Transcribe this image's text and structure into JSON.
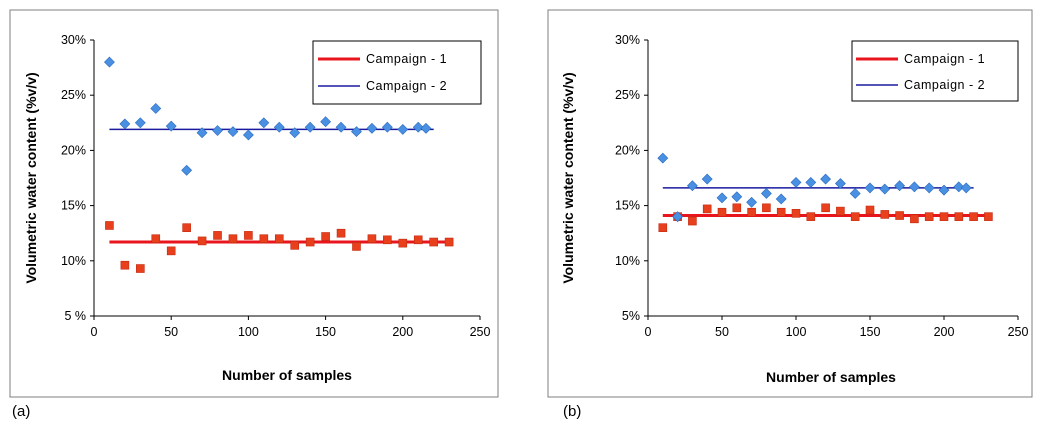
{
  "chart_data": [
    {
      "type": "scatter",
      "panel_label": "(a)",
      "xlabel": "Number of samples",
      "ylabel": "Volumetric water content (%v/v)",
      "xlim": [
        0,
        250
      ],
      "ylim": [
        5,
        30
      ],
      "xticks": [
        0,
        50,
        100,
        150,
        200,
        250
      ],
      "yticks": [
        5,
        10,
        15,
        20,
        25,
        30
      ],
      "xtick_labels": [
        "0",
        "50",
        "100",
        "150",
        "200",
        "250"
      ],
      "ytick_labels": [
        "5 %",
        "10%",
        "15%",
        "20%",
        "25%",
        "30%"
      ],
      "grid": false,
      "legend_position": "top-right",
      "series": [
        {
          "name": "Campaign - 1",
          "color": "#e8401c",
          "marker": "square",
          "mean_line_color": "#e8161c",
          "mean": 11.7,
          "mean_x_range": [
            10,
            230
          ],
          "x": [
            10,
            20,
            30,
            40,
            50,
            60,
            70,
            80,
            90,
            100,
            110,
            120,
            130,
            140,
            150,
            160,
            170,
            180,
            190,
            200,
            210,
            220,
            230
          ],
          "y": [
            13.2,
            9.6,
            9.3,
            12.0,
            10.9,
            13.0,
            11.8,
            12.3,
            12.0,
            12.3,
            12.0,
            12.0,
            11.4,
            11.7,
            12.2,
            12.5,
            11.3,
            12.0,
            11.9,
            11.6,
            11.9,
            11.7,
            11.7
          ]
        },
        {
          "name": "Campaign - 2",
          "color": "#4a90e2",
          "marker": "diamond",
          "mean_line_color": "#1a1aa0",
          "mean": 21.9,
          "mean_x_range": [
            10,
            220
          ],
          "x": [
            10,
            20,
            30,
            40,
            50,
            60,
            70,
            80,
            90,
            100,
            110,
            120,
            130,
            140,
            150,
            160,
            170,
            180,
            190,
            200,
            210,
            215
          ],
          "y": [
            28.0,
            22.4,
            22.5,
            23.8,
            22.2,
            18.2,
            21.6,
            21.8,
            21.7,
            21.4,
            22.5,
            22.1,
            21.6,
            22.1,
            22.6,
            22.1,
            21.7,
            22.0,
            22.1,
            21.9,
            22.1,
            22.0
          ]
        }
      ]
    },
    {
      "type": "scatter",
      "panel_label": "(b)",
      "xlabel": "Number of samples",
      "ylabel": "Volumetric water content (%v/v)",
      "xlim": [
        0,
        250
      ],
      "ylim": [
        5,
        30
      ],
      "xticks": [
        0,
        50,
        100,
        150,
        200,
        250
      ],
      "yticks": [
        5,
        10,
        15,
        20,
        25,
        30
      ],
      "xtick_labels": [
        "0",
        "50",
        "100",
        "150",
        "200",
        "250"
      ],
      "ytick_labels": [
        "5%",
        "10%",
        "15%",
        "20%",
        "25%",
        "30%"
      ],
      "grid": false,
      "legend_position": "top-right",
      "series": [
        {
          "name": "Campaign - 1",
          "color": "#e8401c",
          "marker": "square",
          "mean_line_color": "#e8161c",
          "mean": 14.1,
          "mean_x_range": [
            10,
            230
          ],
          "x": [
            10,
            20,
            30,
            40,
            50,
            60,
            70,
            80,
            90,
            100,
            110,
            120,
            130,
            140,
            150,
            160,
            170,
            180,
            190,
            200,
            210,
            220,
            230
          ],
          "y": [
            13.0,
            14.0,
            13.6,
            14.7,
            14.4,
            14.8,
            14.4,
            14.8,
            14.4,
            14.3,
            14.0,
            14.8,
            14.5,
            14.0,
            14.6,
            14.2,
            14.1,
            13.8,
            14.0,
            14.0,
            14.0,
            14.0,
            14.0
          ]
        },
        {
          "name": "Campaign - 2",
          "color": "#4a90e2",
          "marker": "diamond",
          "mean_line_color": "#1a1aa0",
          "mean": 16.6,
          "mean_x_range": [
            10,
            220
          ],
          "x": [
            10,
            20,
            30,
            40,
            50,
            60,
            70,
            80,
            90,
            100,
            110,
            120,
            130,
            140,
            150,
            160,
            170,
            180,
            190,
            200,
            210,
            215
          ],
          "y": [
            19.3,
            14.0,
            16.8,
            17.4,
            15.7,
            15.8,
            15.3,
            16.1,
            15.6,
            17.1,
            17.1,
            17.4,
            17.0,
            16.1,
            16.6,
            16.5,
            16.8,
            16.7,
            16.6,
            16.4,
            16.7,
            16.6
          ]
        }
      ]
    }
  ]
}
